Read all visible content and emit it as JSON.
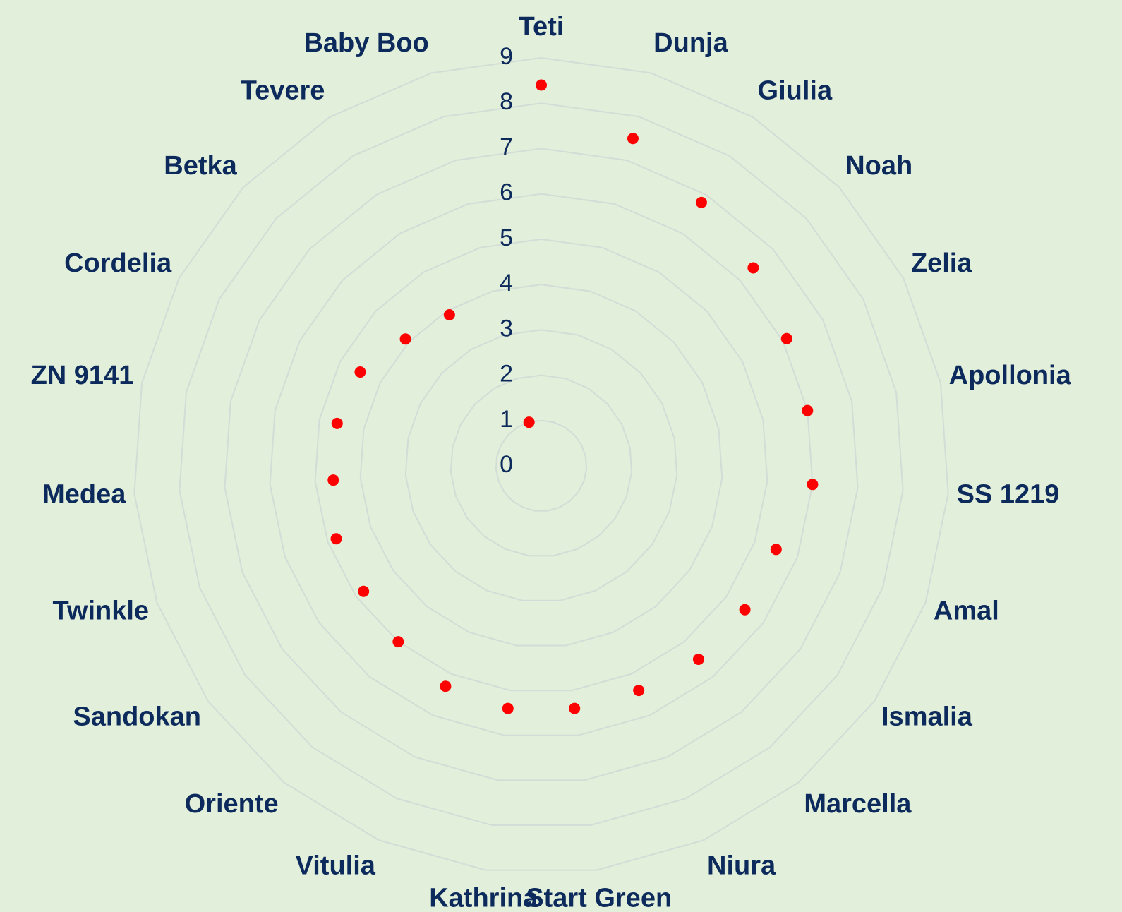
{
  "chart_data": {
    "type": "radar",
    "categories": [
      "Teti",
      "Dunja",
      "Giulia",
      "Noah",
      "Zelia",
      "Apollonia",
      "SS 1219",
      "Amal",
      "Ismalia",
      "Marcella",
      "Niura",
      "Start Green",
      "Kathrina",
      "Vitulia",
      "Oriente",
      "Sandokan",
      "Twinkle",
      "Medea",
      "ZN 9141",
      "Cordelia",
      "Betka",
      "Tevere",
      "Baby Boo"
    ],
    "values": [
      8.4,
      7.5,
      6.8,
      6.4,
      6.1,
      6.0,
      6.0,
      5.5,
      5.5,
      5.5,
      5.4,
      5.4,
      5.4,
      5.3,
      5.0,
      4.8,
      4.8,
      4.6,
      4.6,
      4.5,
      4.1,
      3.9,
      1.0
    ],
    "color": "#ff0000",
    "rlim": [
      0,
      9
    ],
    "rticks": [
      0,
      1,
      2,
      3,
      4,
      5,
      6,
      7,
      8,
      9
    ],
    "grid": true
  }
}
